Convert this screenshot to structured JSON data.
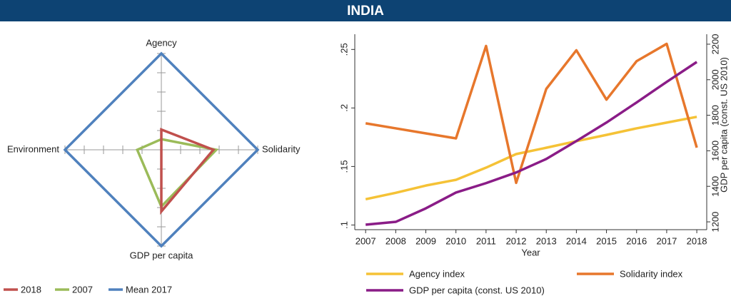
{
  "header": {
    "title": "INDIA"
  },
  "chart_data": [
    {
      "type": "radar",
      "axes": [
        "Agency",
        "Solidarity",
        "GDP per capita",
        "Environment"
      ],
      "rlim": [
        0,
        1
      ],
      "rticks": [
        0.2,
        0.4,
        0.6,
        0.8,
        1
      ],
      "series": [
        {
          "name": "2018",
          "color": "#c0504d",
          "values": [
            0.21,
            0.54,
            0.64,
            0
          ]
        },
        {
          "name": "2007",
          "color": "#9bbb59",
          "values": [
            0.11,
            0.57,
            0.59,
            0.25
          ]
        },
        {
          "name": "Mean 2017",
          "color": "#4f81bd",
          "values": [
            1,
            1,
            1,
            1
          ]
        }
      ]
    },
    {
      "type": "line",
      "x": [
        2007,
        2008,
        2009,
        2010,
        2011,
        2012,
        2013,
        2014,
        2015,
        2016,
        2017,
        2018
      ],
      "xlim": [
        2006.64,
        2018.33
      ],
      "xticks": [
        2007,
        2008,
        2009,
        2010,
        2011,
        2012,
        2013,
        2014,
        2015,
        2016,
        2017,
        2018
      ],
      "xlabel": "Year",
      "ylim": [
        0.096,
        0.263
      ],
      "yticks": [
        {
          "value": 0.1,
          "label": ".1"
        },
        {
          "value": 0.15,
          "label": ".15"
        },
        {
          "value": 0.2,
          "label": ".2"
        },
        {
          "value": 0.25,
          "label": ".25"
        }
      ],
      "y2lim": [
        1156,
        2256
      ],
      "y2ticks": [
        1200,
        1400,
        1600,
        1800,
        2000,
        2200
      ],
      "y2label": "GDP per capita (const. US 2010)",
      "series": [
        {
          "name": "Agency index",
          "color": "#f5c236",
          "values": [
            0.122,
            0.1275,
            0.1337,
            0.1386,
            0.149,
            0.1606,
            0.166,
            0.1716,
            0.177,
            0.1826,
            0.1875,
            0.1924
          ]
        },
        {
          "name": "Solidarity index",
          "color": "#e7772c",
          "values": [
            0.1869,
            0.1826,
            0.1783,
            0.174,
            0.253,
            0.136,
            0.2163,
            0.2493,
            0.2071,
            0.24,
            0.2548,
            0.1661
          ]
        },
        {
          "name": "GDP per capita (const. US 2010)",
          "color": "#8a1c87",
          "axis": "y2",
          "values": [
            1184,
            1200,
            1276,
            1365,
            1418,
            1478,
            1554,
            1655,
            1759,
            1872,
            1988,
            2100
          ]
        }
      ]
    }
  ]
}
